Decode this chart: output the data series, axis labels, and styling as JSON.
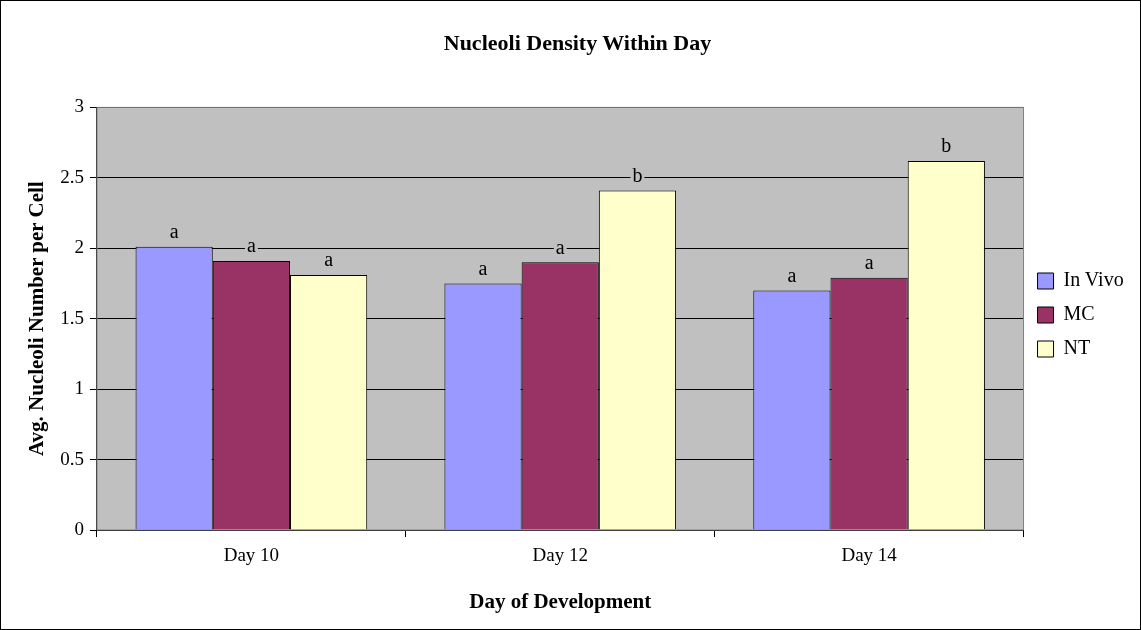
{
  "chart_data": {
    "type": "bar",
    "title": "Nucleoli Density Within Day",
    "xlabel": "Day of Development",
    "ylabel": "Avg. Nucleoli Number per Cell",
    "categories": [
      "Day 10",
      "Day 12",
      "Day 14"
    ],
    "series": [
      {
        "name": "In Vivo",
        "color": "#9999ff",
        "values": [
          2.01,
          1.75,
          1.7
        ],
        "value_labels": [
          "a",
          "a",
          "a"
        ]
      },
      {
        "name": "MC",
        "color": "#993366",
        "values": [
          1.91,
          1.9,
          1.79
        ],
        "value_labels": [
          "a",
          "a",
          "a"
        ]
      },
      {
        "name": "NT",
        "color": "#ffffcc",
        "values": [
          1.81,
          2.41,
          2.62
        ],
        "value_labels": [
          "a",
          "b",
          "b"
        ]
      }
    ],
    "ylim": [
      0,
      3
    ],
    "yticks": [
      0,
      0.5,
      1,
      1.5,
      2,
      2.5,
      3
    ],
    "grid": "y",
    "legend": "right"
  }
}
